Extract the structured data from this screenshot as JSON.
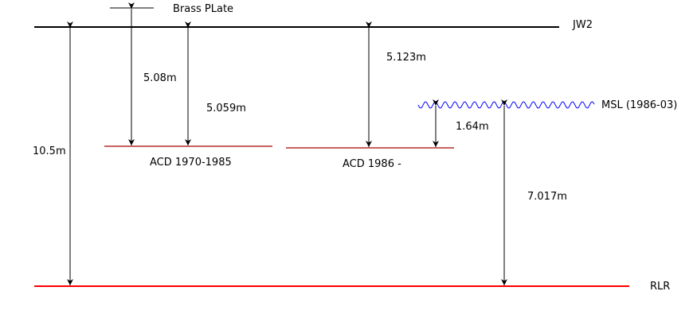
{
  "labels": {
    "brass_plate": "Brass PLate",
    "jw2": "JW2",
    "msl": "MSL (1986-03)",
    "rlr": "RLR",
    "acd_1970": "ACD 1970-1985",
    "acd_1986": "ACD 1986 -"
  },
  "measurements": {
    "jw2_to_rlr": "10.5m",
    "brass_to_acd1970": "5.08m",
    "jw2_to_acd1970": "5.059m",
    "jw2_to_acd1986": "5.123m",
    "msl_to_acd1986": "1.64m",
    "msl_to_rlr": "7.017m"
  },
  "colors": {
    "datum": "#000000",
    "acd": "#aa0000",
    "rlr": "#ff0000",
    "msl": "#0000ff"
  }
}
